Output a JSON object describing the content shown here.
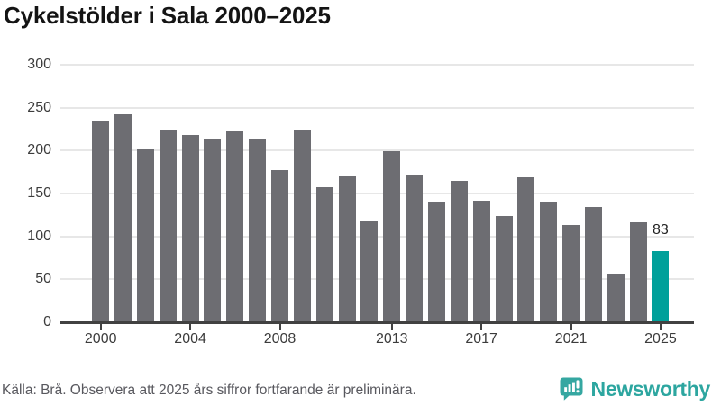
{
  "title": "Cykelstölder i Sala 2000–2025",
  "footer": {
    "source_note": "Källa: Brå. Observera att 2025 års siffror fortfarande är preliminära."
  },
  "branding": {
    "logo_text": "Newsworthy",
    "logo_icon": "newsworthy-speech-bubble-bar-chart-icon",
    "teal": "#2da6a0"
  },
  "chart_data": {
    "type": "bar",
    "title": "Cykelstölder i Sala 2000–2025",
    "xlabel": "",
    "ylabel": "",
    "categories": [
      2000,
      2001,
      2002,
      2003,
      2004,
      2005,
      2006,
      2007,
      2008,
      2009,
      2010,
      2011,
      2012,
      2013,
      2014,
      2015,
      2016,
      2017,
      2018,
      2019,
      2020,
      2021,
      2022,
      2023,
      2024,
      2025
    ],
    "values": [
      234,
      242,
      201,
      225,
      218,
      213,
      222,
      213,
      177,
      224,
      157,
      170,
      118,
      199,
      171,
      140,
      165,
      142,
      124,
      169,
      141,
      113,
      134,
      57,
      116,
      83
    ],
    "highlight_index": 25,
    "highlight_value_label": "83",
    "bar_color": "#6d6d72",
    "highlight_color": "#00a09a",
    "grid": true,
    "gridline_color": "#e7e7e7",
    "ylim": [
      0,
      300
    ],
    "y_ticks": [
      0,
      50,
      100,
      150,
      200,
      250,
      300
    ],
    "x_tick_labels": [
      2000,
      2004,
      2008,
      2013,
      2017,
      2021,
      2025
    ],
    "legend": "none"
  }
}
